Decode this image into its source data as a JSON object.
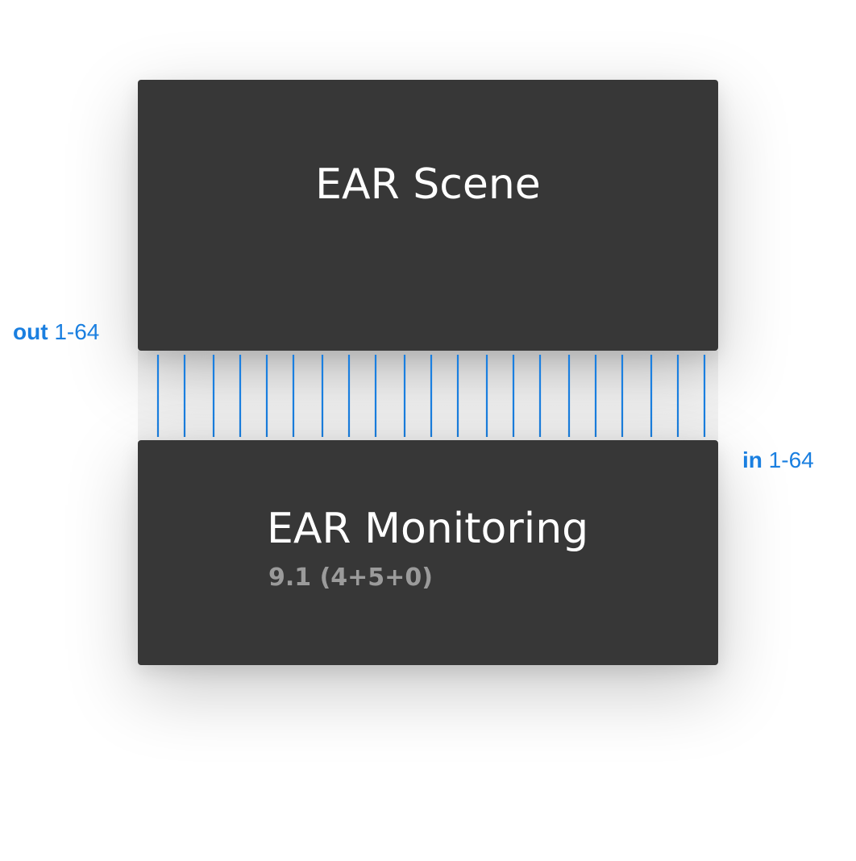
{
  "scene_block": {
    "title": "EAR Scene"
  },
  "monitoring_block": {
    "title": "EAR Monitoring",
    "subtitle": "9.1 (4+5+0)"
  },
  "out_port": {
    "name": "out",
    "range": "1-64"
  },
  "in_port": {
    "name": "in",
    "range": "1-64"
  },
  "colors": {
    "block_background": "#373737",
    "title_text": "#ffffff",
    "subtitle_text": "#9b9b9b",
    "accent_blue": "#1a7fe0",
    "connector_line": "#1a7fe0"
  }
}
